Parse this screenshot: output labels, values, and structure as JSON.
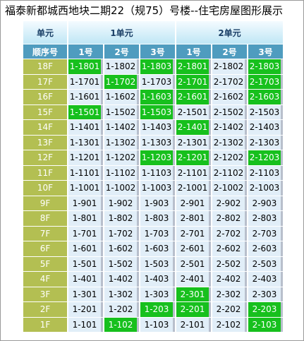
{
  "page": {
    "title": "福泰新都城西地块二期22（规75）号楼--住宅房屋图形展示"
  },
  "colors": {
    "sold": "#17c01d",
    "available": "#e1eef8",
    "floor_label_bg": "#b3bf52",
    "header_bg": "#4f9cbf"
  },
  "table": {
    "corner_label": "单元",
    "order_label": "顺序号",
    "units": [
      {
        "label": "1单元",
        "rooms": [
          "1号",
          "2号",
          "3号"
        ]
      },
      {
        "label": "2单元",
        "rooms": [
          "1号",
          "2号",
          "3号"
        ]
      }
    ],
    "rows": [
      {
        "floor": "18F",
        "cells": [
          {
            "text": "1-1801",
            "sold": true
          },
          {
            "text": "1-1802",
            "sold": false
          },
          {
            "text": "1-1803",
            "sold": true
          },
          {
            "text": "2-1801",
            "sold": true
          },
          {
            "text": "2-1802",
            "sold": false
          },
          {
            "text": "2-1803",
            "sold": true
          }
        ]
      },
      {
        "floor": "17F",
        "cells": [
          {
            "text": "1-1701",
            "sold": false
          },
          {
            "text": "1-1702",
            "sold": true
          },
          {
            "text": "1-1703",
            "sold": false
          },
          {
            "text": "2-1701",
            "sold": true
          },
          {
            "text": "2-1702",
            "sold": false
          },
          {
            "text": "2-1703",
            "sold": true
          }
        ]
      },
      {
        "floor": "16F",
        "cells": [
          {
            "text": "1-1601",
            "sold": false
          },
          {
            "text": "1-1602",
            "sold": false
          },
          {
            "text": "1-1603",
            "sold": true
          },
          {
            "text": "2-1601",
            "sold": true
          },
          {
            "text": "2-1602",
            "sold": false
          },
          {
            "text": "2-1603",
            "sold": true
          }
        ]
      },
      {
        "floor": "15F",
        "cells": [
          {
            "text": "1-1501",
            "sold": true
          },
          {
            "text": "1-1502",
            "sold": false
          },
          {
            "text": "1-1503",
            "sold": true
          },
          {
            "text": "2-1501",
            "sold": false
          },
          {
            "text": "2-1502",
            "sold": false
          },
          {
            "text": "2-1503",
            "sold": false
          }
        ]
      },
      {
        "floor": "14F",
        "cells": [
          {
            "text": "1-1401",
            "sold": false
          },
          {
            "text": "1-1402",
            "sold": false
          },
          {
            "text": "1-1403",
            "sold": false
          },
          {
            "text": "2-1401",
            "sold": true
          },
          {
            "text": "2-1402",
            "sold": false
          },
          {
            "text": "2-1403",
            "sold": false
          }
        ]
      },
      {
        "floor": "13F",
        "cells": [
          {
            "text": "1-1301",
            "sold": false
          },
          {
            "text": "1-1302",
            "sold": false
          },
          {
            "text": "1-1303",
            "sold": false
          },
          {
            "text": "2-1301",
            "sold": false
          },
          {
            "text": "2-1302",
            "sold": false
          },
          {
            "text": "2-1303",
            "sold": false
          }
        ]
      },
      {
        "floor": "12F",
        "cells": [
          {
            "text": "1-1201",
            "sold": false
          },
          {
            "text": "1-1202",
            "sold": false
          },
          {
            "text": "1-1203",
            "sold": true
          },
          {
            "text": "2-1201",
            "sold": true
          },
          {
            "text": "2-1202",
            "sold": false
          },
          {
            "text": "2-1203",
            "sold": true
          }
        ]
      },
      {
        "floor": "11F",
        "cells": [
          {
            "text": "1-1101",
            "sold": false
          },
          {
            "text": "1-1102",
            "sold": false
          },
          {
            "text": "1-1103",
            "sold": false
          },
          {
            "text": "2-1101",
            "sold": false
          },
          {
            "text": "2-1102",
            "sold": false
          },
          {
            "text": "2-1103",
            "sold": false
          }
        ]
      },
      {
        "floor": "10F",
        "cells": [
          {
            "text": "1-1001",
            "sold": false
          },
          {
            "text": "1-1002",
            "sold": false
          },
          {
            "text": "1-1003",
            "sold": false
          },
          {
            "text": "2-1001",
            "sold": false
          },
          {
            "text": "2-1002",
            "sold": false
          },
          {
            "text": "2-1003",
            "sold": false
          }
        ]
      },
      {
        "floor": "9F",
        "cells": [
          {
            "text": "1-901",
            "sold": false
          },
          {
            "text": "1-902",
            "sold": false
          },
          {
            "text": "1-903",
            "sold": false
          },
          {
            "text": "2-901",
            "sold": false
          },
          {
            "text": "2-902",
            "sold": false
          },
          {
            "text": "2-903",
            "sold": false
          }
        ]
      },
      {
        "floor": "8F",
        "cells": [
          {
            "text": "1-801",
            "sold": false
          },
          {
            "text": "1-802",
            "sold": false
          },
          {
            "text": "1-803",
            "sold": false
          },
          {
            "text": "2-801",
            "sold": false
          },
          {
            "text": "2-802",
            "sold": false
          },
          {
            "text": "2-803",
            "sold": false
          }
        ]
      },
      {
        "floor": "7F",
        "cells": [
          {
            "text": "1-701",
            "sold": false
          },
          {
            "text": "1-702",
            "sold": false
          },
          {
            "text": "1-703",
            "sold": false
          },
          {
            "text": "2-701",
            "sold": false
          },
          {
            "text": "2-702",
            "sold": false
          },
          {
            "text": "2-703",
            "sold": false
          }
        ]
      },
      {
        "floor": "6F",
        "cells": [
          {
            "text": "1-601",
            "sold": false
          },
          {
            "text": "1-602",
            "sold": false
          },
          {
            "text": "1-603",
            "sold": false
          },
          {
            "text": "2-601",
            "sold": false
          },
          {
            "text": "2-602",
            "sold": false
          },
          {
            "text": "2-603",
            "sold": false
          }
        ]
      },
      {
        "floor": "5F",
        "cells": [
          {
            "text": "1-501",
            "sold": false
          },
          {
            "text": "1-502",
            "sold": false
          },
          {
            "text": "1-503",
            "sold": false
          },
          {
            "text": "2-501",
            "sold": false
          },
          {
            "text": "2-502",
            "sold": false
          },
          {
            "text": "2-503",
            "sold": false
          }
        ]
      },
      {
        "floor": "4F",
        "cells": [
          {
            "text": "1-401",
            "sold": false
          },
          {
            "text": "1-402",
            "sold": false
          },
          {
            "text": "1-403",
            "sold": false
          },
          {
            "text": "2-401",
            "sold": false
          },
          {
            "text": "2-402",
            "sold": false
          },
          {
            "text": "2-403",
            "sold": false
          }
        ]
      },
      {
        "floor": "3F",
        "cells": [
          {
            "text": "1-301",
            "sold": false
          },
          {
            "text": "1-302",
            "sold": false
          },
          {
            "text": "1-303",
            "sold": false
          },
          {
            "text": "2-301",
            "sold": true
          },
          {
            "text": "2-302",
            "sold": false
          },
          {
            "text": "2-303",
            "sold": false
          }
        ]
      },
      {
        "floor": "2F",
        "cells": [
          {
            "text": "1-201",
            "sold": false
          },
          {
            "text": "1-202",
            "sold": false
          },
          {
            "text": "1-203",
            "sold": true
          },
          {
            "text": "2-201",
            "sold": true
          },
          {
            "text": "2-202",
            "sold": false
          },
          {
            "text": "2-203",
            "sold": true
          }
        ]
      },
      {
        "floor": "1F",
        "cells": [
          {
            "text": "1-101",
            "sold": false
          },
          {
            "text": "1-102",
            "sold": true
          },
          {
            "text": "1-103",
            "sold": false
          },
          {
            "text": "2-101",
            "sold": false
          },
          {
            "text": "2-102",
            "sold": false
          },
          {
            "text": "2-103",
            "sold": true
          }
        ]
      }
    ]
  }
}
